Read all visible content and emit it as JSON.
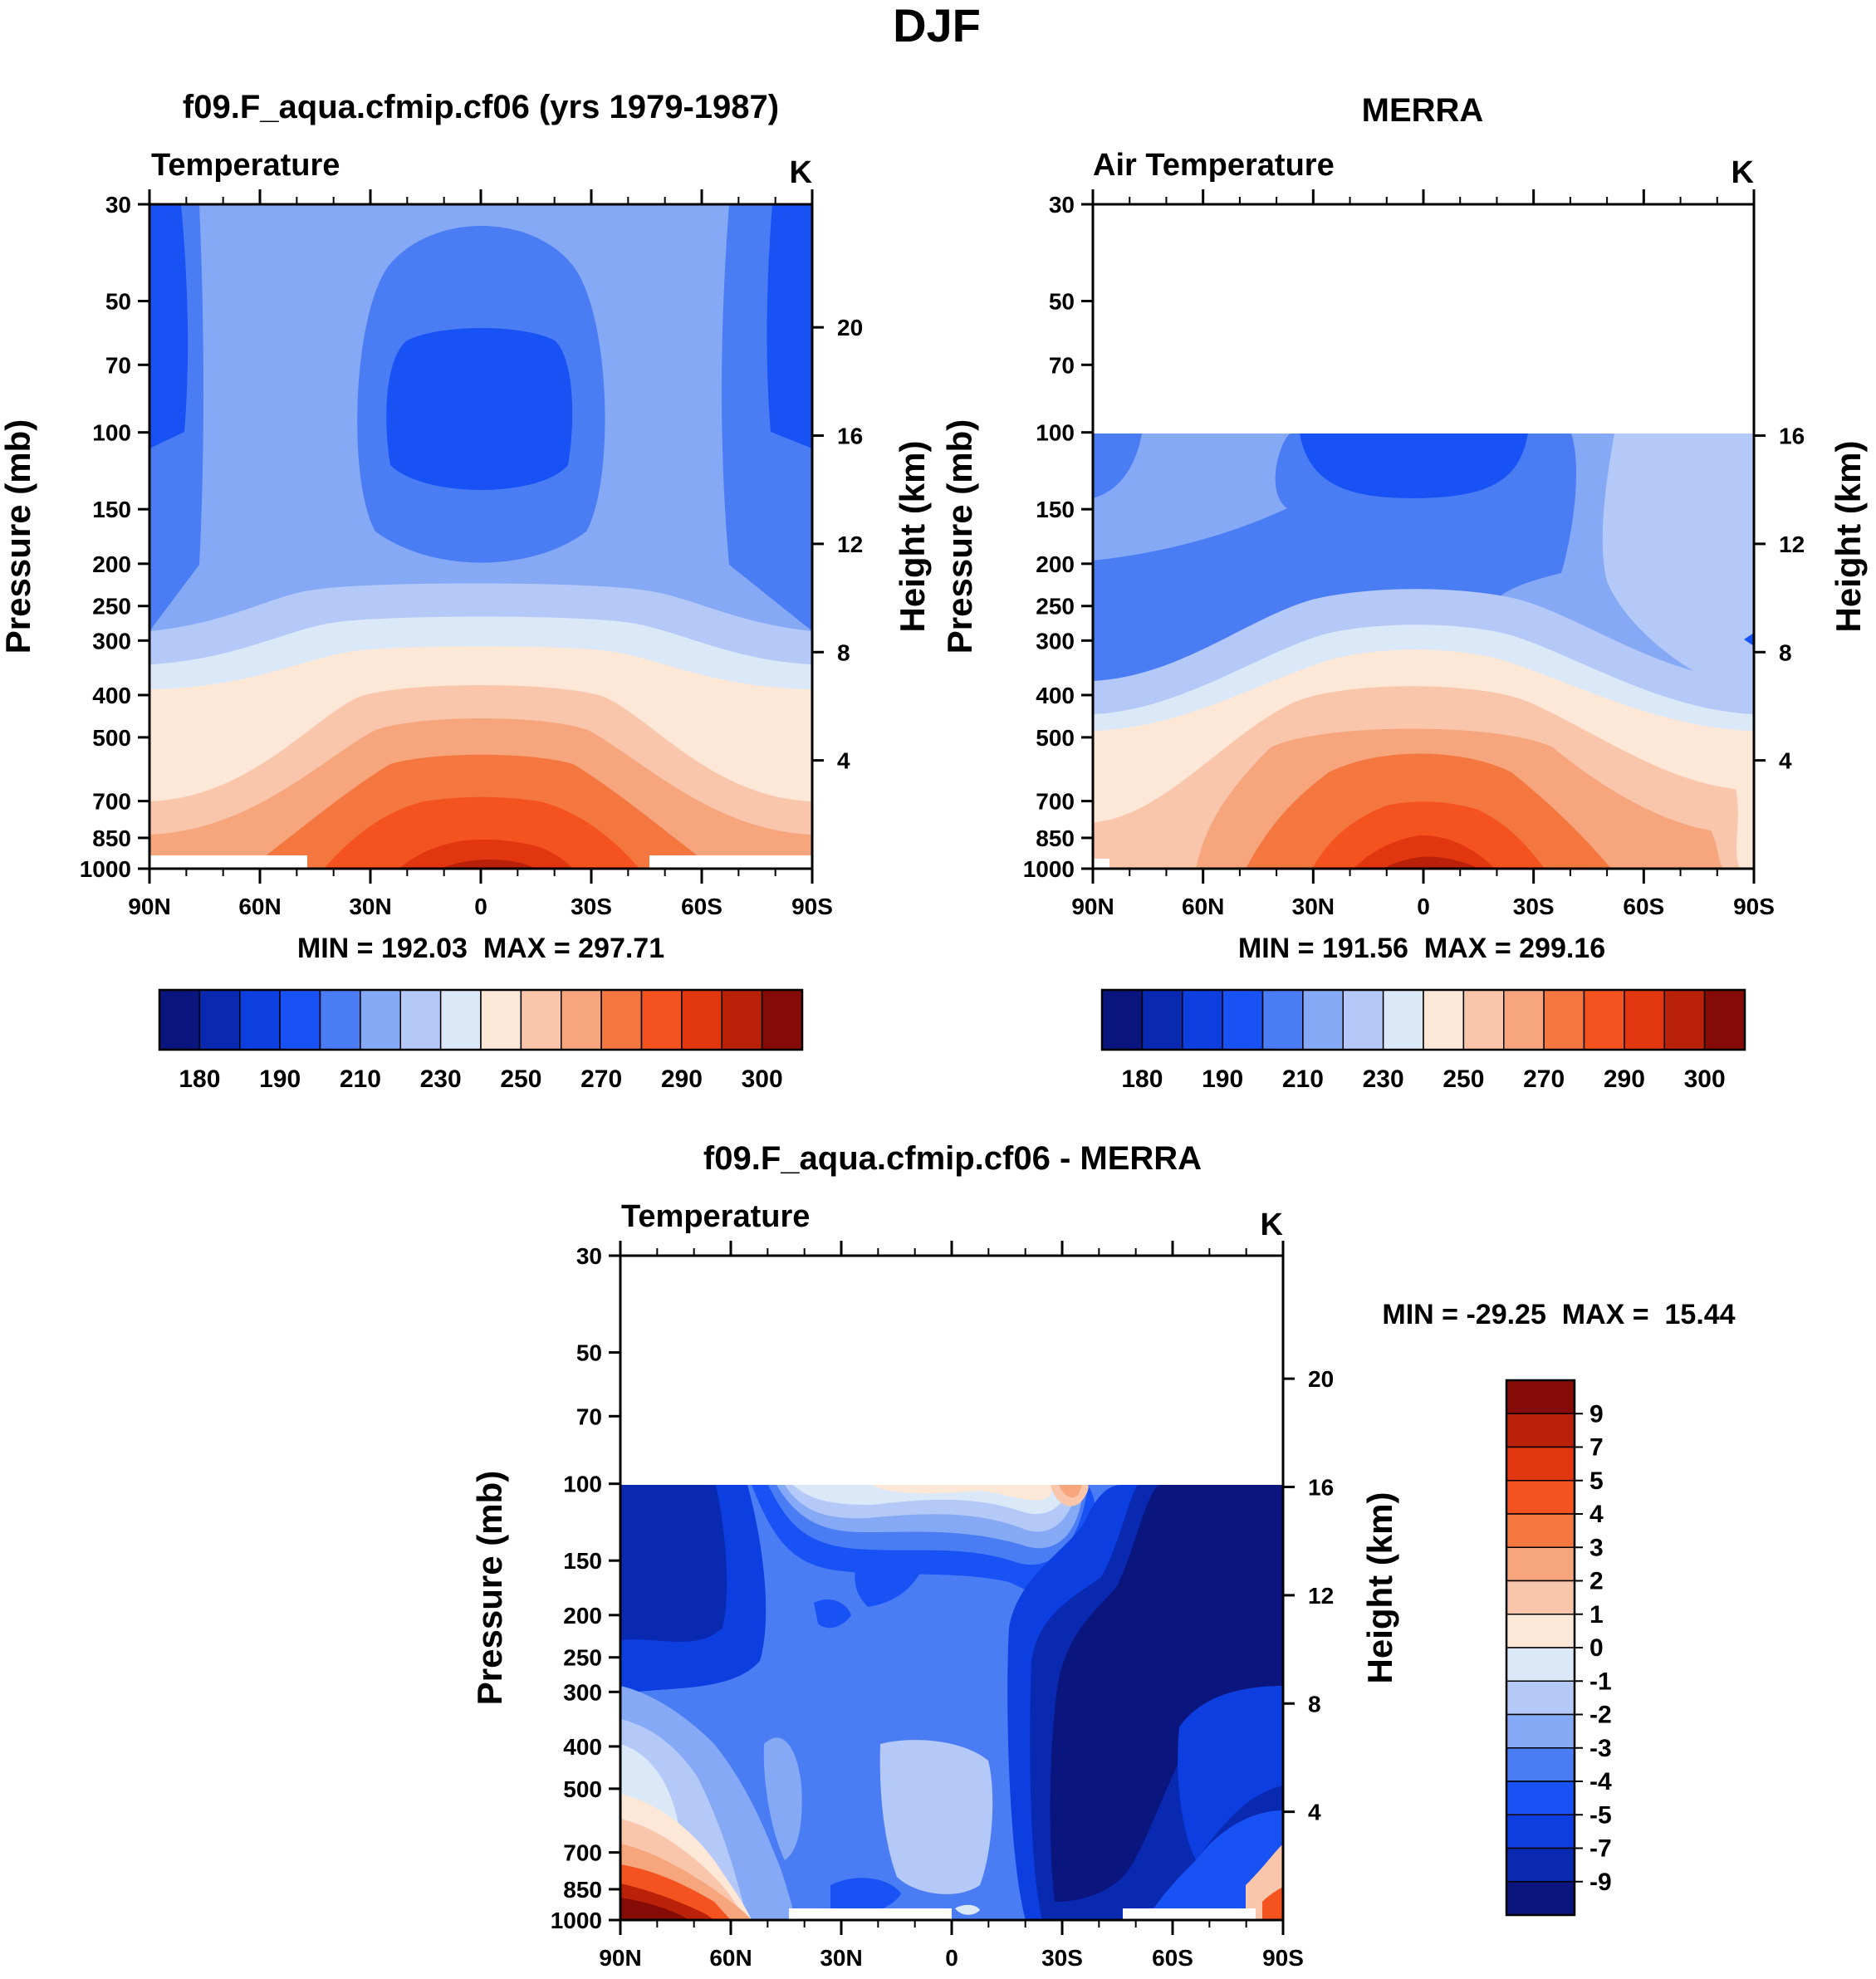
{
  "page_title": "DJF",
  "chart_data": [
    {
      "id": "model",
      "type": "contour",
      "title": "f09.F_aqua.cfmip.cf06 (yrs 1979-1987)",
      "left_label": "Temperature",
      "units": "K",
      "ylabel": "Pressure (mb)",
      "ylabel_right": "Height (km)",
      "y_ticks": [
        "30",
        "50",
        "70",
        "100",
        "150",
        "200",
        "250",
        "300",
        "400",
        "500",
        "700",
        "850",
        "1000"
      ],
      "y_right_ticks": [
        "20",
        "16",
        "12",
        "8",
        "4"
      ],
      "x_ticks": [
        "90N",
        "60N",
        "30N",
        "0",
        "30S",
        "60S",
        "90S"
      ],
      "stats": "MIN = 192.03  MAX = 297.71",
      "colorbar_labels": [
        "180",
        "190",
        "210",
        "230",
        "250",
        "270",
        "290",
        "300"
      ],
      "levels_K": [
        180,
        185,
        190,
        200,
        210,
        220,
        230,
        240,
        250,
        260,
        270,
        280,
        290,
        295,
        300
      ],
      "min": 192.03,
      "max": 297.71
    },
    {
      "id": "obs",
      "type": "contour",
      "title": "MERRA",
      "left_label": "Air Temperature",
      "units": "K",
      "ylabel": "Pressure (mb)",
      "ylabel_right": "Height (km)",
      "y_ticks": [
        "30",
        "50",
        "70",
        "100",
        "150",
        "200",
        "250",
        "300",
        "400",
        "500",
        "700",
        "850",
        "1000"
      ],
      "y_right_ticks": [
        "16",
        "12",
        "8",
        "4"
      ],
      "x_ticks": [
        "90N",
        "60N",
        "30N",
        "0",
        "30S",
        "60S",
        "90S"
      ],
      "stats": "MIN = 191.56  MAX = 299.16",
      "colorbar_labels": [
        "180",
        "190",
        "210",
        "230",
        "250",
        "270",
        "290",
        "300"
      ],
      "levels_K": [
        180,
        185,
        190,
        200,
        210,
        220,
        230,
        240,
        250,
        260,
        270,
        280,
        290,
        295,
        300
      ],
      "min": 191.56,
      "max": 299.16
    },
    {
      "id": "diff",
      "type": "contour",
      "title": "f09.F_aqua.cfmip.cf06 - MERRA",
      "left_label": "Temperature",
      "units": "K",
      "ylabel": "Pressure (mb)",
      "ylabel_right": "Height (km)",
      "y_ticks": [
        "30",
        "50",
        "70",
        "100",
        "150",
        "200",
        "250",
        "300",
        "400",
        "500",
        "700",
        "850",
        "1000"
      ],
      "y_right_ticks": [
        "20",
        "16",
        "12",
        "8",
        "4"
      ],
      "x_ticks": [
        "90N",
        "60N",
        "30N",
        "0",
        "30S",
        "60S",
        "90S"
      ],
      "stats": "MIN = -29.25  MAX =  15.44",
      "colorbar_labels": [
        "9",
        "7",
        "5",
        "4",
        "3",
        "2",
        "1",
        "0",
        "-1",
        "-2",
        "-3",
        "-4",
        "-5",
        "-7",
        "-9"
      ],
      "min": -29.25,
      "max": 15.44
    }
  ],
  "colors": {
    "scale": [
      "#0b157e",
      "#0a29b1",
      "#0c3ee0",
      "#1852f4",
      "#4a7df4",
      "#86a9f6",
      "#b4c9f7",
      "#dbe8f8",
      "#fde8d8",
      "#f9c6ac",
      "#f6a57c",
      "#f4773f",
      "#f4521f",
      "#e1360f",
      "#b92208",
      "#850c06"
    ]
  }
}
